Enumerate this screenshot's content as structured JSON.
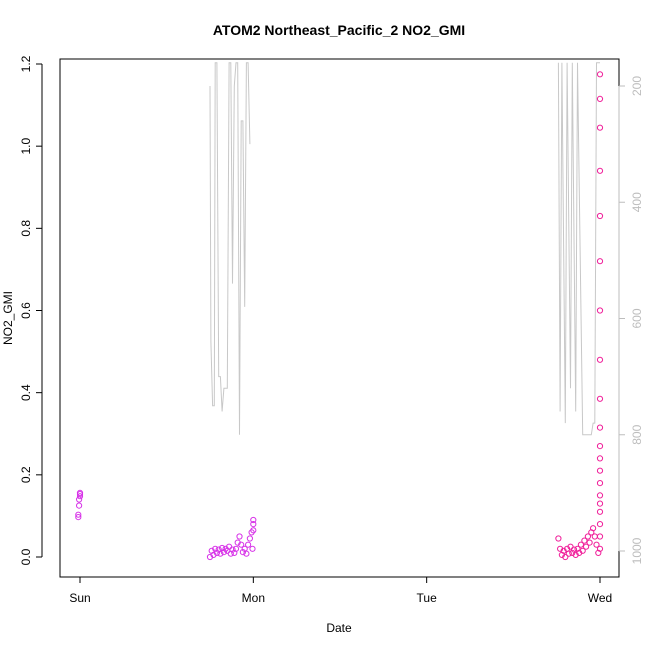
{
  "chart_data": {
    "type": "scatter",
    "title": "ATOM2 Northeast_Pacific_2 NO2_GMI",
    "xlabel": "Date",
    "ylabel": "NO2_GMI",
    "x_tick_labels": [
      "Sun",
      "Mon",
      "Tue",
      "Wed"
    ],
    "y_ticks": [
      0.0,
      0.2,
      0.4,
      0.6,
      0.8,
      1.0,
      1.2
    ],
    "y_tick_labels": [
      "0.0",
      "0.2",
      "0.4",
      "0.6",
      "0.8",
      "1.0",
      "1.2"
    ],
    "ylim": [
      0,
      1.2
    ],
    "right_axis": {
      "ticks": [
        200,
        400,
        600,
        800,
        1000
      ],
      "tick_labels": [
        "200",
        "400",
        "600",
        "800",
        "1000"
      ],
      "color": "#bdbdbd",
      "reversed": true
    },
    "grid": false,
    "colors": {
      "points_a": "#d733e8",
      "points_b": "#f01f9a",
      "line": "#c8c8c8"
    },
    "series": [
      {
        "marker": "open-circle",
        "color": "#d733e8",
        "points": [
          [
            -0.01,
            0.097
          ],
          [
            -0.01,
            0.103
          ],
          [
            -0.005,
            0.125
          ],
          [
            -0.005,
            0.14
          ],
          [
            0.0,
            0.148
          ],
          [
            0.0,
            0.153
          ],
          [
            0.0,
            0.156
          ],
          [
            0.75,
            0.0
          ],
          [
            0.76,
            0.015
          ],
          [
            0.77,
            0.005
          ],
          [
            0.78,
            0.02
          ],
          [
            0.79,
            0.01
          ],
          [
            0.8,
            0.018
          ],
          [
            0.81,
            0.008
          ],
          [
            0.82,
            0.022
          ],
          [
            0.83,
            0.012
          ],
          [
            0.84,
            0.02
          ],
          [
            0.85,
            0.015
          ],
          [
            0.86,
            0.025
          ],
          [
            0.87,
            0.008
          ],
          [
            0.88,
            0.018
          ],
          [
            0.89,
            0.01
          ],
          [
            0.9,
            0.02
          ],
          [
            0.91,
            0.035
          ],
          [
            0.92,
            0.05
          ],
          [
            0.93,
            0.03
          ],
          [
            0.94,
            0.012
          ],
          [
            0.95,
            0.02
          ],
          [
            0.96,
            0.008
          ],
          [
            0.97,
            0.03
          ],
          [
            0.98,
            0.045
          ],
          [
            0.99,
            0.06
          ],
          [
            1.0,
            0.08
          ],
          [
            1.0,
            0.09
          ],
          [
            1.0,
            0.065
          ],
          [
            0.995,
            0.02
          ]
        ]
      },
      {
        "marker": "open-circle",
        "color": "#f01f9a",
        "points": [
          [
            2.76,
            0.045
          ],
          [
            2.77,
            0.02
          ],
          [
            2.78,
            0.005
          ],
          [
            2.79,
            0.015
          ],
          [
            2.8,
            0.0
          ],
          [
            2.81,
            0.02
          ],
          [
            2.82,
            0.008
          ],
          [
            2.83,
            0.025
          ],
          [
            2.84,
            0.01
          ],
          [
            2.85,
            0.018
          ],
          [
            2.86,
            0.005
          ],
          [
            2.87,
            0.02
          ],
          [
            2.88,
            0.01
          ],
          [
            2.89,
            0.03
          ],
          [
            2.9,
            0.015
          ],
          [
            2.91,
            0.04
          ],
          [
            2.92,
            0.025
          ],
          [
            2.93,
            0.05
          ],
          [
            2.94,
            0.035
          ],
          [
            2.95,
            0.06
          ],
          [
            2.96,
            0.07
          ],
          [
            2.97,
            0.05
          ],
          [
            2.98,
            0.03
          ],
          [
            2.99,
            0.01
          ],
          [
            3.0,
            0.02
          ],
          [
            3.0,
            0.05
          ],
          [
            3.0,
            0.08
          ],
          [
            3.0,
            0.11
          ],
          [
            3.0,
            0.13
          ],
          [
            3.0,
            0.15
          ],
          [
            3.0,
            0.18
          ],
          [
            3.0,
            0.21
          ],
          [
            3.0,
            0.24
          ],
          [
            3.0,
            0.27
          ],
          [
            3.0,
            0.315
          ],
          [
            3.0,
            0.385
          ],
          [
            3.0,
            0.48
          ],
          [
            3.0,
            0.6
          ],
          [
            3.0,
            0.72
          ],
          [
            3.0,
            0.83
          ],
          [
            3.0,
            0.94
          ],
          [
            3.0,
            1.045
          ],
          [
            3.0,
            1.115
          ],
          [
            3.0,
            1.175
          ]
        ]
      },
      {
        "marker": "line",
        "color": "#c8c8c8",
        "axis": "right",
        "points": [
          [
            0.75,
            200
          ],
          [
            0.755,
            640
          ],
          [
            0.765,
            750
          ],
          [
            0.775,
            750
          ],
          [
            0.78,
            160
          ],
          [
            0.79,
            160
          ],
          [
            0.8,
            700
          ],
          [
            0.81,
            700
          ],
          [
            0.82,
            760
          ],
          [
            0.83,
            720
          ],
          [
            0.84,
            720
          ],
          [
            0.85,
            720
          ],
          [
            0.86,
            160
          ],
          [
            0.87,
            160
          ],
          [
            0.88,
            540
          ],
          [
            0.89,
            200
          ],
          [
            0.9,
            160
          ],
          [
            0.91,
            160
          ],
          [
            0.92,
            800
          ],
          [
            0.93,
            260
          ],
          [
            0.94,
            260
          ],
          [
            0.95,
            580
          ],
          [
            0.96,
            160
          ],
          [
            0.97,
            160
          ],
          [
            0.98,
            300
          ],
          [
            2.76,
            160
          ],
          [
            2.77,
            760
          ],
          [
            2.78,
            160
          ],
          [
            2.8,
            780
          ],
          [
            2.81,
            160
          ],
          [
            2.83,
            720
          ],
          [
            2.84,
            160
          ],
          [
            2.86,
            760
          ],
          [
            2.87,
            160
          ],
          [
            2.9,
            800
          ],
          [
            2.91,
            800
          ],
          [
            2.95,
            800
          ],
          [
            2.96,
            780
          ],
          [
            2.97,
            780
          ],
          [
            2.98,
            160
          ],
          [
            3.0,
            160
          ]
        ]
      }
    ]
  }
}
